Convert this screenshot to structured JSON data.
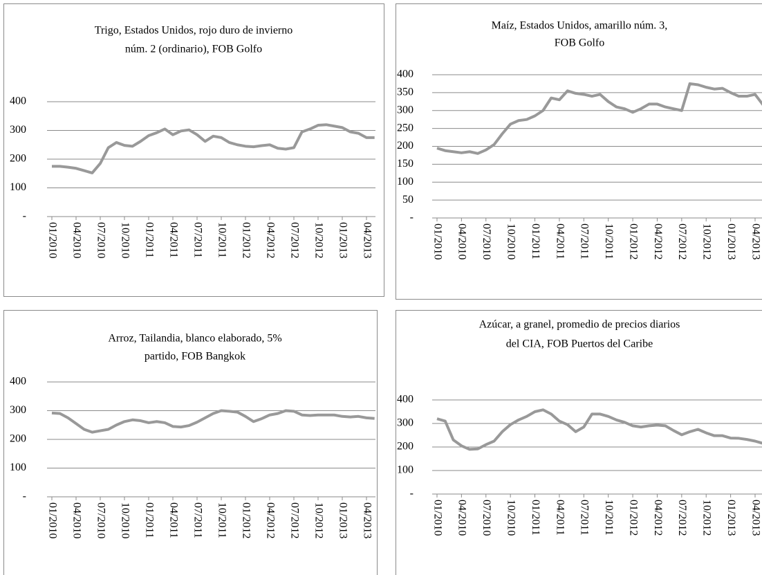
{
  "chart_data": [
    {
      "type": "line",
      "title": [
        "Trigo, Estados Unidos, rojo duro de invierno",
        "núm. 2 (ordinario), FOB Golfo"
      ],
      "categories": [
        "01/2010",
        null,
        null,
        "04/2010",
        null,
        null,
        "07/2010",
        null,
        null,
        "10/2010",
        null,
        null,
        "01/2011",
        null,
        null,
        "04/2011",
        null,
        null,
        "07/2011",
        null,
        null,
        "10/2011",
        null,
        null,
        "01/2012",
        null,
        null,
        "04/2012",
        null,
        null,
        "07/2012",
        null,
        null,
        "10/2012",
        null,
        null,
        "01/2013",
        null,
        null,
        "04/2013",
        null
      ],
      "values": [
        175,
        175,
        172,
        168,
        160,
        152,
        185,
        240,
        258,
        248,
        245,
        262,
        282,
        292,
        305,
        285,
        298,
        302,
        285,
        262,
        280,
        275,
        258,
        250,
        245,
        243,
        247,
        250,
        238,
        235,
        240,
        295,
        305,
        318,
        320,
        315,
        310,
        295,
        290,
        275,
        275
      ],
      "color": "#999999",
      "ylim": [
        0,
        400
      ],
      "yticks": [
        {
          "value": 0,
          "label": "-"
        },
        100,
        200,
        300,
        400
      ],
      "grid": true
    },
    {
      "type": "line",
      "title": [
        "Maíz, Estados Unidos, amarillo núm. 3,",
        "FOB Golfo"
      ],
      "categories": [
        "01/2010",
        null,
        null,
        "04/2010",
        null,
        null,
        "07/2010",
        null,
        null,
        "10/2010",
        null,
        null,
        "01/2011",
        null,
        null,
        "04/2011",
        null,
        null,
        "07/2011",
        null,
        null,
        "10/2011",
        null,
        null,
        "01/2012",
        null,
        null,
        "04/2012",
        null,
        null,
        "07/2012",
        null,
        null,
        "10/2012",
        null,
        null,
        "01/2013",
        null,
        null,
        "04/2013",
        null
      ],
      "values": [
        195,
        188,
        185,
        182,
        185,
        180,
        190,
        205,
        235,
        262,
        272,
        275,
        285,
        300,
        335,
        330,
        355,
        348,
        345,
        340,
        345,
        325,
        310,
        305,
        295,
        305,
        318,
        318,
        310,
        305,
        300,
        375,
        372,
        365,
        360,
        362,
        350,
        340,
        340,
        345,
        315
      ],
      "color": "#999999",
      "ylim": [
        0,
        400
      ],
      "yticks": [
        {
          "value": 0,
          "label": "-"
        },
        50,
        100,
        150,
        200,
        250,
        300,
        350,
        400
      ],
      "grid": true
    },
    {
      "type": "line",
      "title": [
        "Arroz, Tailandia, blanco elaborado, 5%",
        "partido, FOB Bangkok"
      ],
      "categories": [
        "01/2010",
        null,
        null,
        "04/2010",
        null,
        null,
        "07/2010",
        null,
        null,
        "10/2010",
        null,
        null,
        "01/2011",
        null,
        null,
        "04/2011",
        null,
        null,
        "07/2011",
        null,
        null,
        "10/2011",
        null,
        null,
        "01/2012",
        null,
        null,
        "04/2012",
        null,
        null,
        "07/2012",
        null,
        null,
        "10/2012",
        null,
        null,
        "01/2013",
        null,
        null,
        "04/2013",
        null
      ],
      "values": [
        292,
        290,
        275,
        255,
        235,
        225,
        230,
        235,
        250,
        262,
        268,
        265,
        258,
        262,
        258,
        245,
        243,
        248,
        260,
        275,
        290,
        300,
        298,
        295,
        280,
        262,
        272,
        285,
        290,
        300,
        298,
        285,
        283,
        285,
        285,
        285,
        280,
        278,
        280,
        275,
        273
      ],
      "color": "#999999",
      "ylim": [
        0,
        400
      ],
      "yticks": [
        {
          "value": 0,
          "label": "-"
        },
        100,
        200,
        300,
        400
      ],
      "grid": true
    },
    {
      "type": "line",
      "title": [
        "Azúcar, a granel, promedio de precios diarios",
        "del CIA, FOB Puertos del Caribe"
      ],
      "categories": [
        "01/2010",
        null,
        null,
        "04/2010",
        null,
        null,
        "07/2010",
        null,
        null,
        "10/2010",
        null,
        null,
        "01/2011",
        null,
        null,
        "04/2011",
        null,
        null,
        "07/2011",
        null,
        null,
        "10/2011",
        null,
        null,
        "01/2012",
        null,
        null,
        "04/2012",
        null,
        null,
        "07/2012",
        null,
        null,
        "10/2012",
        null,
        null,
        "01/2013",
        null,
        null,
        "04/2013",
        null
      ],
      "values": [
        320,
        310,
        230,
        205,
        190,
        192,
        210,
        225,
        265,
        295,
        315,
        330,
        350,
        358,
        340,
        310,
        295,
        265,
        285,
        340,
        340,
        330,
        315,
        305,
        290,
        285,
        290,
        293,
        290,
        270,
        252,
        265,
        275,
        260,
        248,
        248,
        238,
        237,
        232,
        225,
        215
      ],
      "color": "#999999",
      "ylim": [
        0,
        400
      ],
      "yticks": [
        {
          "value": 0,
          "label": "-"
        },
        100,
        200,
        300,
        400
      ],
      "grid": true
    }
  ]
}
